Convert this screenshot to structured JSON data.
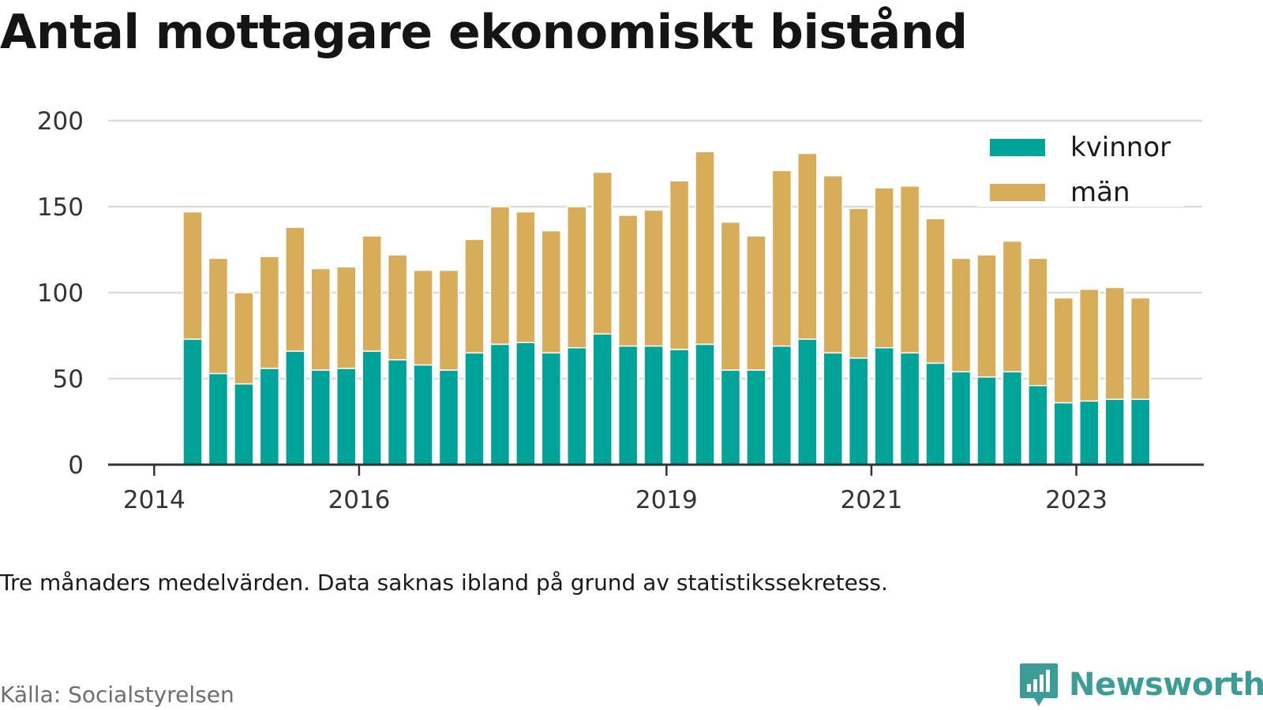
{
  "title": "Antal mottagare ekonomiskt bistånd",
  "note": "Tre månaders medelvärden. Data saknas ibland på grund av statistikssekretess.",
  "source": "Källa: Socialstyrelsen",
  "brand": {
    "name": "Newsworthy",
    "icon": "newsworthy-logo-icon",
    "color": "#3a9e96"
  },
  "chart_data": {
    "type": "bar",
    "stacked": true,
    "ylim": [
      0,
      200
    ],
    "yticks": [
      0,
      50,
      100,
      150,
      200
    ],
    "grid": true,
    "legend_position": "top-right",
    "x_tick_labels": [
      "2014",
      "2016",
      "2019",
      "2021",
      "2023"
    ],
    "colors": {
      "kvinnor": "#00a398",
      "man": "#d8ad5a"
    },
    "periods": [
      "2014 Q2",
      "2014 Q3",
      "2014 Q4",
      "2015 Q1",
      "2015 Q2",
      "2015 Q3",
      "2015 Q4",
      "2016 Q1",
      "2016 Q2",
      "2016 Q3",
      "2016 Q4",
      "2017 Q1",
      "2017 Q2",
      "2017 Q3",
      "2017 Q4",
      "2018 Q1",
      "2018 Q2",
      "2018 Q3",
      "2018 Q4",
      "2019 Q1",
      "2019 Q2",
      "2019 Q3",
      "2019 Q4",
      "2020 Q1",
      "2020 Q2",
      "2020 Q3",
      "2020 Q4",
      "2021 Q1",
      "2021 Q2",
      "2021 Q3",
      "2021 Q4",
      "2022 Q1",
      "2022 Q2",
      "2022 Q3",
      "2022 Q4",
      "2023 Q1",
      "2023 Q2",
      "2023 Q3"
    ],
    "series": [
      {
        "name": "kvinnor",
        "values": [
          73,
          53,
          47,
          56,
          66,
          55,
          56,
          66,
          61,
          58,
          55,
          65,
          70,
          71,
          65,
          68,
          76,
          69,
          69,
          67,
          70,
          55,
          55,
          69,
          73,
          65,
          62,
          68,
          65,
          59,
          54,
          51,
          54,
          46,
          36,
          37,
          38,
          38
        ]
      },
      {
        "name": "män",
        "values": [
          74,
          67,
          53,
          65,
          72,
          59,
          59,
          67,
          61,
          55,
          58,
          66,
          80,
          76,
          71,
          82,
          94,
          76,
          79,
          98,
          112,
          86,
          78,
          102,
          108,
          103,
          87,
          93,
          97,
          84,
          66,
          71,
          76,
          74,
          61,
          65,
          65,
          59
        ]
      }
    ]
  }
}
